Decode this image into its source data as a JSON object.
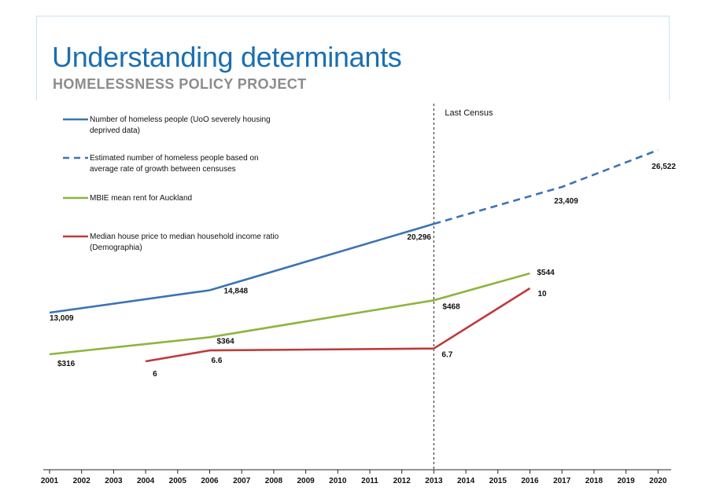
{
  "header": {
    "title": "Understanding determinants",
    "subtitle": "HOMELESSNESS POLICY PROJECT"
  },
  "chart_data": {
    "type": "line",
    "x": [
      2001,
      2002,
      2003,
      2004,
      2005,
      2006,
      2007,
      2008,
      2009,
      2010,
      2011,
      2012,
      2013,
      2014,
      2015,
      2016,
      2017,
      2018,
      2019,
      2020
    ],
    "xlabel": "",
    "ylabel": "",
    "legend_position": "top-left",
    "grid": false,
    "annotations": [
      {
        "text": "Last Census",
        "x": 2013,
        "style": "dashed-vertical-line",
        "color": "#404040"
      }
    ],
    "series": [
      {
        "name": "Number of homeless people (UoO severely housing deprived data)",
        "color": "#3c73b4",
        "style": "solid",
        "points": [
          [
            2001,
            13009
          ],
          [
            2006,
            14848
          ],
          [
            2013,
            20296
          ]
        ],
        "labels": [
          {
            "x": 2001,
            "text": "13,009"
          },
          {
            "x": 2006,
            "text": "14,848"
          },
          {
            "x": 2013,
            "text": "20,296"
          }
        ]
      },
      {
        "name": "Estimated number of homeless people based on average rate of growth between censuses",
        "color": "#3c73b4",
        "style": "dashed",
        "points": [
          [
            2013,
            20296
          ],
          [
            2017,
            23409
          ],
          [
            2020,
            26522
          ]
        ],
        "labels": [
          {
            "x": 2017,
            "text": "23,409"
          },
          {
            "x": 2020,
            "text": "26,522"
          }
        ]
      },
      {
        "name": "MBIE mean rent for Auckland",
        "color": "#8db53e",
        "style": "solid",
        "points": [
          [
            2001,
            316
          ],
          [
            2006,
            364
          ],
          [
            2013,
            468
          ],
          [
            2016,
            544
          ]
        ],
        "labels": [
          {
            "x": 2001,
            "text": "$316"
          },
          {
            "x": 2006,
            "text": "$364"
          },
          {
            "x": 2013,
            "text": "$468"
          },
          {
            "x": 2016,
            "text": "$544"
          }
        ]
      },
      {
        "name": "Median house price to median household income ratio (Demographia)",
        "color": "#be3a3a",
        "style": "solid",
        "points": [
          [
            2004,
            6
          ],
          [
            2006,
            6.6
          ],
          [
            2013,
            6.7
          ],
          [
            2016,
            10
          ]
        ],
        "labels": [
          {
            "x": 2004,
            "text": "6"
          },
          {
            "x": 2006,
            "text": "6.6"
          },
          {
            "x": 2013,
            "text": "6.7"
          },
          {
            "x": 2016,
            "text": "10"
          }
        ]
      }
    ],
    "legend": [
      {
        "text": [
          "Number of homeless people (UoO severely housing",
          "deprived data)"
        ],
        "series": 0
      },
      {
        "text": [
          "Estimated number of homeless people based on",
          "average rate of growth between censuses"
        ],
        "series": 1
      },
      {
        "text": [
          "MBIE mean rent for Auckland"
        ],
        "series": 2
      },
      {
        "text": [
          "Median house price to median household income ratio",
          "(Demographia)"
        ],
        "series": 3
      }
    ]
  }
}
